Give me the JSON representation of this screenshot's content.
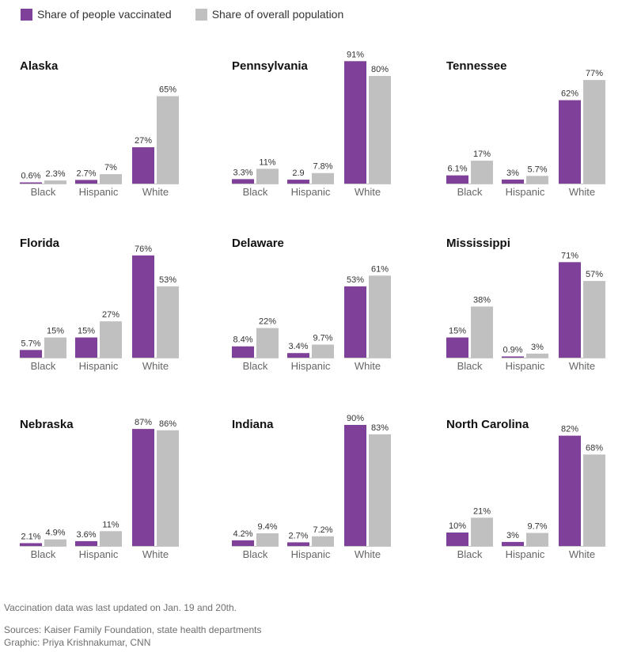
{
  "legend": {
    "vaccinated_label": "Share of people vaccinated",
    "population_label": "Share of overall population"
  },
  "colors": {
    "vaccinated": "#7f4099",
    "population": "#c0c0c0",
    "baseline": "#c8c8c8",
    "title": "#111111",
    "value_label": "#333333",
    "category_label": "#666666"
  },
  "footer": {
    "note": "Vaccination data was last updated on Jan. 19 and 20th.",
    "sources": "Sources: Kaiser Family Foundation, state health departments",
    "graphic": "Graphic: Priya Krishnakumar, CNN"
  },
  "chart_data": [
    {
      "type": "bar",
      "title": "Alaska",
      "categories": [
        "Black",
        "Hispanic",
        "White"
      ],
      "series": [
        {
          "name": "Share of people vaccinated",
          "values": [
            0.6,
            2.7,
            27
          ],
          "labels": [
            "0.6%",
            "2.7%",
            "27%"
          ]
        },
        {
          "name": "Share of overall population",
          "values": [
            2.3,
            7,
            65
          ],
          "labels": [
            "2.3%",
            "7%",
            "65%"
          ]
        }
      ]
    },
    {
      "type": "bar",
      "title": "Pennsylvania",
      "categories": [
        "Black",
        "Hispanic",
        "White"
      ],
      "series": [
        {
          "name": "Share of people vaccinated",
          "values": [
            3.3,
            2.9,
            91
          ],
          "labels": [
            "3.3%",
            "2.9",
            "91%"
          ]
        },
        {
          "name": "Share of overall population",
          "values": [
            11,
            7.8,
            80
          ],
          "labels": [
            "11%",
            "7.8%",
            "80%"
          ]
        }
      ]
    },
    {
      "type": "bar",
      "title": "Tennessee",
      "categories": [
        "Black",
        "Hispanic",
        "White"
      ],
      "series": [
        {
          "name": "Share of people vaccinated",
          "values": [
            6.1,
            3,
            62
          ],
          "labels": [
            "6.1%",
            "3%",
            "62%"
          ]
        },
        {
          "name": "Share of overall population",
          "values": [
            17,
            5.7,
            77
          ],
          "labels": [
            "17%",
            "5.7%",
            "77%"
          ]
        }
      ]
    },
    {
      "type": "bar",
      "title": "Florida",
      "categories": [
        "Black",
        "Hispanic",
        "White"
      ],
      "series": [
        {
          "name": "Share of people vaccinated",
          "values": [
            5.7,
            15,
            76
          ],
          "labels": [
            "5.7%",
            "15%",
            "76%"
          ]
        },
        {
          "name": "Share of overall population",
          "values": [
            15,
            27,
            53
          ],
          "labels": [
            "15%",
            "27%",
            "53%"
          ]
        }
      ]
    },
    {
      "type": "bar",
      "title": "Delaware",
      "categories": [
        "Black",
        "Hispanic",
        "White"
      ],
      "series": [
        {
          "name": "Share of people vaccinated",
          "values": [
            8.4,
            3.4,
            53
          ],
          "labels": [
            "8.4%",
            "3.4%",
            "53%"
          ]
        },
        {
          "name": "Share of overall population",
          "values": [
            22,
            9.7,
            61
          ],
          "labels": [
            "22%",
            "9.7%",
            "61%"
          ]
        }
      ]
    },
    {
      "type": "bar",
      "title": "Mississippi",
      "categories": [
        "Black",
        "Hispanic",
        "White"
      ],
      "series": [
        {
          "name": "Share of people vaccinated",
          "values": [
            15,
            0.9,
            71
          ],
          "labels": [
            "15%",
            "0.9%",
            "71%"
          ]
        },
        {
          "name": "Share of overall population",
          "values": [
            38,
            3,
            57
          ],
          "labels": [
            "38%",
            "3%",
            "57%"
          ]
        }
      ]
    },
    {
      "type": "bar",
      "title": "Nebraska",
      "categories": [
        "Black",
        "Hispanic",
        "White"
      ],
      "series": [
        {
          "name": "Share of people vaccinated",
          "values": [
            2.1,
            3.6,
            87
          ],
          "labels": [
            "2.1%",
            "3.6%",
            "87%"
          ]
        },
        {
          "name": "Share of overall population",
          "values": [
            4.9,
            11,
            86
          ],
          "labels": [
            "4.9%",
            "11%",
            "86%"
          ]
        }
      ]
    },
    {
      "type": "bar",
      "title": "Indiana",
      "categories": [
        "Black",
        "Hispanic",
        "White"
      ],
      "series": [
        {
          "name": "Share of people vaccinated",
          "values": [
            4.2,
            2.7,
            90
          ],
          "labels": [
            "4.2%",
            "2.7%",
            "90%"
          ]
        },
        {
          "name": "Share of overall population",
          "values": [
            9.4,
            7.2,
            83
          ],
          "labels": [
            "9.4%",
            "7.2%",
            "83%"
          ]
        }
      ]
    },
    {
      "type": "bar",
      "title": "North Carolina",
      "categories": [
        "Black",
        "Hispanic",
        "White"
      ],
      "series": [
        {
          "name": "Share of people vaccinated",
          "values": [
            10,
            3,
            82
          ],
          "labels": [
            "10%",
            "3%",
            "82%"
          ]
        },
        {
          "name": "Share of overall population",
          "values": [
            21,
            9.7,
            68
          ],
          "labels": [
            "21%",
            "9.7%",
            "68%"
          ]
        }
      ]
    }
  ]
}
